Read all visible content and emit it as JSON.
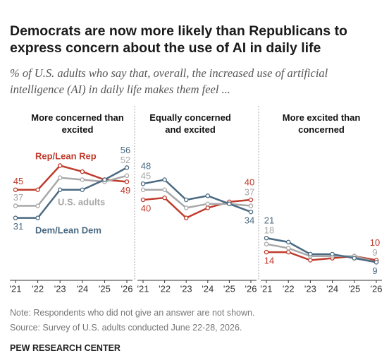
{
  "title": "Democrats are now more likely than Republicans to express concern about the use of AI in daily life",
  "subtitle": "% of U.S. adults who say that, overall, the increased use of artificial intelligence (AI) in daily life makes them feel ...",
  "chart_data": [
    {
      "type": "line",
      "title": "More concerned than excited",
      "categories": [
        "'21",
        "'22",
        "'23",
        "'24",
        "'25",
        "'26"
      ],
      "ylim": [
        0,
        60
      ],
      "series": [
        {
          "name": "Rep/Lean Rep",
          "color": "#bf3b2c",
          "values": [
            45,
            45,
            57,
            54,
            50,
            49
          ]
        },
        {
          "name": "U.S. adults",
          "color": "#a8a8a8",
          "values": [
            37,
            37,
            51,
            50,
            49,
            52
          ]
        },
        {
          "name": "Dem/Lean Dem",
          "color": "#4b6a82",
          "values": [
            31,
            31,
            45,
            45,
            50,
            56
          ]
        }
      ]
    },
    {
      "type": "line",
      "title": "Equally concerned and excited",
      "categories": [
        "'21",
        "'22",
        "'23",
        "'24",
        "'25",
        "'26"
      ],
      "ylim": [
        0,
        60
      ],
      "series": [
        {
          "color": "#bf3b2c",
          "values": [
            40,
            41,
            31,
            36,
            39,
            40
          ]
        },
        {
          "color": "#a8a8a8",
          "values": [
            45,
            45,
            36,
            38,
            38,
            37
          ]
        },
        {
          "color": "#4b6a82",
          "values": [
            48,
            50,
            40,
            42,
            38,
            34
          ]
        }
      ]
    },
    {
      "type": "line",
      "title": "More excited than concerned",
      "categories": [
        "'21",
        "'22",
        "'23",
        "'24",
        "'25",
        "'26"
      ],
      "ylim": [
        0,
        60
      ],
      "series": [
        {
          "color": "#bf3b2c",
          "values": [
            14,
            14,
            10,
            11,
            12,
            10
          ]
        },
        {
          "color": "#a8a8a8",
          "values": [
            18,
            16,
            12,
            12,
            12,
            9
          ]
        },
        {
          "color": "#4b6a82",
          "values": [
            21,
            19,
            13,
            13,
            11,
            9
          ]
        }
      ]
    }
  ],
  "note": "Note: Respondents who did not give an answer are not shown.",
  "source": "Source: Survey of U.S. adults conducted June 22-28, 2026.",
  "footer": "PEW RESEARCH CENTER"
}
